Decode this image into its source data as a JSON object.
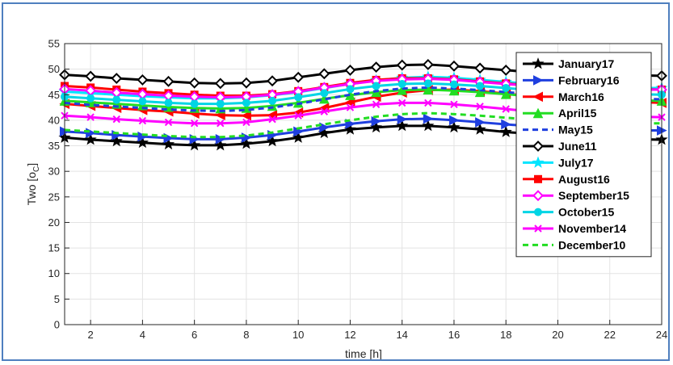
{
  "chart_data": {
    "type": "line",
    "title": "",
    "xlabel": "time [h]",
    "ylabel_main": "Two [o",
    "ylabel_sub": "C",
    "ylabel_close": "]",
    "xlim": [
      1,
      24
    ],
    "ylim": [
      0,
      55
    ],
    "xticks": [
      2,
      4,
      6,
      8,
      10,
      12,
      14,
      16,
      18,
      20,
      22,
      24
    ],
    "yticks": [
      0,
      5,
      10,
      15,
      20,
      25,
      30,
      35,
      40,
      45,
      50,
      55
    ],
    "grid": true,
    "legend_position": "right",
    "x": [
      1,
      2,
      3,
      4,
      5,
      6,
      7,
      8,
      9,
      10,
      11,
      12,
      13,
      14,
      15,
      16,
      17,
      18,
      19,
      20,
      21,
      22,
      23,
      24
    ],
    "series": [
      {
        "name": "January17",
        "color": "#000000",
        "marker": "star",
        "dash": "solid",
        "values": [
          36.6,
          36.2,
          35.9,
          35.6,
          35.3,
          35.1,
          35.1,
          35.4,
          35.9,
          36.6,
          37.5,
          38.2,
          38.6,
          38.9,
          38.9,
          38.6,
          38.2,
          37.7,
          37.3,
          36.9,
          36.6,
          36.4,
          36.3,
          36.2
        ]
      },
      {
        "name": "February16",
        "color": "#1f3fdf",
        "marker": "triangle-right",
        "dash": "solid",
        "values": [
          37.8,
          37.5,
          37.1,
          36.8,
          36.5,
          36.3,
          36.3,
          36.6,
          37.1,
          37.8,
          38.6,
          39.3,
          39.8,
          40.2,
          40.3,
          40.0,
          39.6,
          39.2,
          38.8,
          38.5,
          38.3,
          38.1,
          38.0,
          38.0
        ]
      },
      {
        "name": "March16",
        "color": "#ff0000",
        "marker": "triangle-left",
        "dash": "solid",
        "values": [
          43.2,
          42.8,
          42.4,
          42.0,
          41.7,
          41.3,
          41.0,
          40.9,
          41.0,
          41.5,
          42.4,
          43.5,
          44.6,
          45.4,
          45.9,
          46.0,
          45.7,
          45.2,
          44.7,
          44.3,
          44.0,
          43.8,
          43.6,
          43.4
        ]
      },
      {
        "name": "April15",
        "color": "#22dd22",
        "marker": "triangle-up",
        "dash": "solid",
        "values": [
          43.8,
          43.5,
          43.2,
          42.9,
          42.6,
          42.4,
          42.3,
          42.4,
          42.8,
          43.4,
          44.2,
          44.9,
          45.5,
          45.9,
          46.0,
          45.8,
          45.5,
          45.1,
          44.7,
          44.4,
          44.2,
          44.0,
          43.9,
          43.8
        ]
      },
      {
        "name": "May15",
        "color": "#1f3fdf",
        "marker": "none",
        "dash": "dash",
        "values": [
          43.4,
          43.0,
          42.7,
          42.4,
          42.1,
          41.9,
          41.8,
          42.0,
          42.5,
          43.2,
          44.1,
          45.0,
          45.7,
          46.2,
          46.4,
          46.2,
          45.9,
          45.5,
          45.1,
          44.8,
          44.5,
          44.3,
          44.2,
          44.1
        ]
      },
      {
        "name": "June11",
        "color": "#000000",
        "marker": "diamond",
        "dash": "solid",
        "values": [
          48.9,
          48.6,
          48.2,
          47.9,
          47.6,
          47.3,
          47.2,
          47.3,
          47.7,
          48.4,
          49.1,
          49.8,
          50.4,
          50.8,
          50.9,
          50.6,
          50.2,
          49.8,
          49.4,
          49.1,
          48.9,
          48.8,
          48.8,
          48.7
        ]
      },
      {
        "name": "July17",
        "color": "#00e5ff",
        "marker": "star",
        "dash": "solid",
        "values": [
          45.6,
          45.3,
          45.0,
          44.7,
          44.5,
          44.3,
          44.3,
          44.5,
          44.9,
          45.5,
          46.3,
          47.1,
          47.8,
          48.3,
          48.5,
          48.3,
          47.9,
          47.5,
          47.1,
          46.8,
          46.6,
          46.4,
          46.3,
          46.3
        ]
      },
      {
        "name": "August16",
        "color": "#ff0000",
        "marker": "square",
        "dash": "solid",
        "values": [
          46.7,
          46.4,
          46.0,
          45.6,
          45.3,
          45.0,
          44.8,
          44.8,
          45.1,
          45.7,
          46.5,
          47.3,
          47.9,
          48.2,
          48.2,
          48.0,
          47.6,
          47.2,
          46.8,
          46.5,
          46.3,
          46.2,
          46.1,
          46.0
        ]
      },
      {
        "name": "September15",
        "color": "#ff00ff",
        "marker": "diamond",
        "dash": "solid",
        "values": [
          46.1,
          45.8,
          45.4,
          45.1,
          44.8,
          44.6,
          44.5,
          44.6,
          45.0,
          45.6,
          46.4,
          47.1,
          47.7,
          48.0,
          48.1,
          47.9,
          47.5,
          47.1,
          46.7,
          46.4,
          46.2,
          46.1,
          46.0,
          46.0
        ]
      },
      {
        "name": "October15",
        "color": "#00d5e5",
        "marker": "circle",
        "dash": "solid",
        "values": [
          44.6,
          44.3,
          44.0,
          43.7,
          43.4,
          43.2,
          43.2,
          43.4,
          43.8,
          44.5,
          45.3,
          46.1,
          46.7,
          47.1,
          47.2,
          47.0,
          46.7,
          46.3,
          45.9,
          45.6,
          45.4,
          45.2,
          45.1,
          45.0
        ]
      },
      {
        "name": "November14",
        "color": "#ff00ff",
        "marker": "x",
        "dash": "solid",
        "values": [
          40.9,
          40.6,
          40.2,
          39.9,
          39.6,
          39.4,
          39.4,
          39.6,
          40.2,
          40.9,
          41.7,
          42.5,
          43.1,
          43.4,
          43.4,
          43.1,
          42.7,
          42.2,
          41.7,
          41.3,
          41.0,
          40.8,
          40.7,
          40.6
        ]
      },
      {
        "name": "December10",
        "color": "#22dd22",
        "marker": "none",
        "dash": "dash",
        "values": [
          38.1,
          37.8,
          37.5,
          37.2,
          36.9,
          36.7,
          36.7,
          37.0,
          37.6,
          38.4,
          39.2,
          40.0,
          40.7,
          41.2,
          41.4,
          41.2,
          40.9,
          40.5,
          40.1,
          39.8,
          39.6,
          39.5,
          39.4,
          39.4
        ]
      }
    ]
  }
}
